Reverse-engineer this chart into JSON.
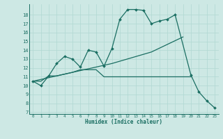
{
  "xlabel": "Humidex (Indice chaleur)",
  "bg_color": "#cde8e4",
  "line_color": "#1a6e62",
  "grid_color": "#b0d8d2",
  "xlim": [
    -0.5,
    23.5
  ],
  "ylim": [
    6.8,
    19.2
  ],
  "yticks": [
    7,
    8,
    9,
    10,
    11,
    12,
    13,
    14,
    15,
    16,
    17,
    18
  ],
  "xticks": [
    0,
    1,
    2,
    3,
    4,
    5,
    6,
    7,
    8,
    9,
    10,
    11,
    12,
    13,
    14,
    15,
    16,
    17,
    18,
    19,
    20,
    21,
    22,
    23
  ],
  "series1_x": [
    0,
    1,
    2,
    3,
    4,
    5,
    6,
    7,
    8,
    9,
    10,
    11,
    12,
    13,
    14,
    15,
    16,
    17,
    18,
    20,
    21,
    22,
    23
  ],
  "series1_y": [
    10.5,
    10.0,
    11.1,
    12.5,
    13.3,
    13.0,
    12.1,
    14.0,
    13.8,
    12.2,
    14.2,
    17.5,
    18.6,
    18.6,
    18.5,
    17.0,
    17.3,
    17.5,
    18.0,
    11.2,
    9.3,
    8.3,
    7.5
  ],
  "series2_x": [
    0,
    1,
    2,
    3,
    4,
    5,
    6,
    7,
    8,
    9,
    10,
    11,
    12,
    13,
    14,
    15,
    16,
    17,
    18,
    19,
    20
  ],
  "series2_y": [
    10.5,
    10.5,
    11.1,
    11.1,
    11.3,
    11.5,
    11.8,
    11.8,
    11.8,
    11.0,
    11.0,
    11.0,
    11.0,
    11.0,
    11.0,
    11.0,
    11.0,
    11.0,
    11.0,
    11.0,
    11.0
  ],
  "series3_x": [
    0,
    5,
    10,
    15,
    19
  ],
  "series3_y": [
    10.5,
    11.5,
    12.5,
    13.8,
    15.5
  ]
}
